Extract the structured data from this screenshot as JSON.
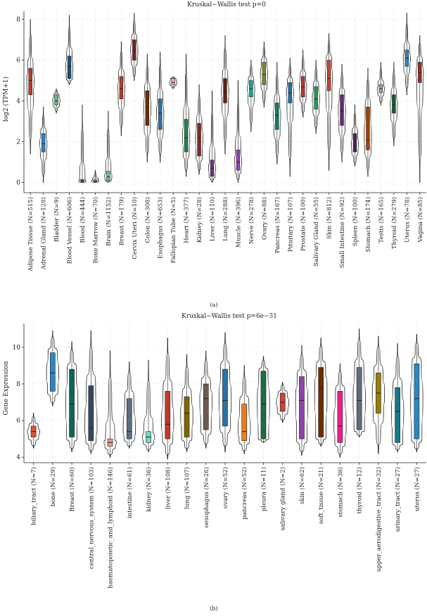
{
  "chart_data": [
    {
      "type": "violin+box",
      "title": "Kruskal−Wallis test p=0",
      "ylabel": "log2 (TPM+1)",
      "xlabel": "",
      "ylim": [
        -0.5,
        8.4
      ],
      "yticks": [
        0,
        2,
        4,
        6,
        8
      ],
      "panel_label": "(a)",
      "groups": [
        {
          "label": "Adipose Tissue (N=515)",
          "color": "#c0392b",
          "min": 1.4,
          "q1": 4.3,
          "median": 5.0,
          "q3": 5.6,
          "max": 8.0
        },
        {
          "label": "Adrenal Gland (N=128)",
          "color": "#2e86c1",
          "min": 0.0,
          "q1": 1.5,
          "median": 1.9,
          "q3": 2.4,
          "max": 3.7
        },
        {
          "label": "Bladder (N=9)",
          "color": "#52be80",
          "min": 3.4,
          "q1": 3.8,
          "median": 4.0,
          "q3": 4.3,
          "max": 4.6
        },
        {
          "label": "Blood Vessel (N=606)",
          "color": "#1a5276",
          "min": 4.8,
          "q1": 5.1,
          "median": 5.7,
          "q3": 6.2,
          "max": 8.2
        },
        {
          "label": "Blood (N=444)",
          "color": "#5d6d7e",
          "min": 0.0,
          "q1": 0.02,
          "median": 0.08,
          "q3": 0.15,
          "max": 3.8
        },
        {
          "label": "Bone Marrow (N=70)",
          "color": "#99a3a4",
          "min": 0.0,
          "q1": 0.03,
          "median": 0.08,
          "q3": 0.15,
          "max": 0.6
        },
        {
          "label": "Brain (N=1152)",
          "color": "#48c9b0",
          "min": 0.0,
          "q1": 0.1,
          "median": 0.28,
          "q3": 0.55,
          "max": 3.5
        },
        {
          "label": "Breast (N=179)",
          "color": "#c0392b",
          "min": 2.3,
          "q1": 4.1,
          "median": 4.6,
          "q3": 5.2,
          "max": 6.9
        },
        {
          "label": "Cervix Uteri (N=10)",
          "color": "#7b241c",
          "min": 5.0,
          "q1": 6.0,
          "median": 6.5,
          "q3": 7.0,
          "max": 8.3
        },
        {
          "label": "Colon (N=308)",
          "color": "#6e2c00",
          "min": 1.0,
          "q1": 2.8,
          "median": 3.7,
          "q3": 4.5,
          "max": 6.3
        },
        {
          "label": "Esophagus (N=653)",
          "color": "#2874a6",
          "min": 1.0,
          "q1": 2.6,
          "median": 3.4,
          "q3": 4.1,
          "max": 6.4
        },
        {
          "label": "Fallopian Tube (N=5)",
          "color": "#f5a6a6",
          "min": 4.6,
          "q1": 4.8,
          "median": 4.9,
          "q3": 5.1,
          "max": 5.2
        },
        {
          "label": "Heart (N=377)",
          "color": "#1e8449",
          "min": 0.3,
          "q1": 1.5,
          "median": 2.2,
          "q3": 3.1,
          "max": 6.3
        },
        {
          "label": "Kidney (N=28)",
          "color": "#7b2d26",
          "min": 0.4,
          "q1": 1.3,
          "median": 2.2,
          "q3": 2.9,
          "max": 4.8
        },
        {
          "label": "Liver (N=110)",
          "color": "#6c3483",
          "min": 0.0,
          "q1": 0.3,
          "median": 0.7,
          "q3": 1.1,
          "max": 4.5
        },
        {
          "label": "Lung (N=288)",
          "color": "#641e16",
          "min": 1.4,
          "q1": 3.9,
          "median": 4.5,
          "q3": 5.1,
          "max": 7.2
        },
        {
          "label": "Muscle (N=396)",
          "color": "#8e44ad",
          "min": 0.0,
          "q1": 0.6,
          "median": 1.0,
          "q3": 1.6,
          "max": 5.0
        },
        {
          "label": "Nerve (N=278)",
          "color": "#17a589",
          "min": 2.5,
          "q1": 4.2,
          "median": 4.6,
          "q3": 5.0,
          "max": 6.0
        },
        {
          "label": "Ovary (N=88)",
          "color": "#7d8a2e",
          "min": 3.7,
          "q1": 4.8,
          "median": 5.3,
          "q3": 5.9,
          "max": 6.9
        },
        {
          "label": "Pancreas (N=167)",
          "color": "#117a65",
          "min": 0.9,
          "q1": 2.6,
          "median": 3.3,
          "q3": 3.9,
          "max": 5.9
        },
        {
          "label": "Pituitary (N=107)",
          "color": "#2471a3",
          "min": 0.3,
          "q1": 3.9,
          "median": 4.4,
          "q3": 4.9,
          "max": 6.1
        },
        {
          "label": "Prostate (N=100)",
          "color": "#b03a2e",
          "min": 3.2,
          "q1": 4.2,
          "median": 4.7,
          "q3": 5.2,
          "max": 6.5
        },
        {
          "label": "Salivary Gland (N=55)",
          "color": "#229954",
          "min": 2.4,
          "q1": 3.6,
          "median": 4.1,
          "q3": 4.7,
          "max": 6.0
        },
        {
          "label": "Skin (N=812)",
          "color": "#cb4335",
          "min": 0.6,
          "q1": 4.5,
          "median": 5.1,
          "q3": 6.0,
          "max": 7.3
        },
        {
          "label": "Small Intestine (N=92)",
          "color": "#5b2c6f",
          "min": 1.0,
          "q1": 2.8,
          "median": 3.5,
          "q3": 4.3,
          "max": 5.8
        },
        {
          "label": "Spleen (N=100)",
          "color": "#4a235a",
          "min": 0.8,
          "q1": 1.5,
          "median": 1.8,
          "q3": 2.4,
          "max": 3.8
        },
        {
          "label": "Stomach (N=174)",
          "color": "#a04000",
          "min": 0.3,
          "q1": 1.6,
          "median": 2.1,
          "q3": 3.7,
          "max": 5.6
        },
        {
          "label": "Testis (N=165)",
          "color": "#95a5a6",
          "min": 3.8,
          "q1": 4.4,
          "median": 4.6,
          "q3": 4.8,
          "max": 5.9
        },
        {
          "label": "Thyroid (N=279)",
          "color": "#145a32",
          "min": 1.8,
          "q1": 3.4,
          "median": 3.8,
          "q3": 4.3,
          "max": 5.9
        },
        {
          "label": "Uterus (N=78)",
          "color": "#2e86c1",
          "min": 4.3,
          "q1": 5.7,
          "median": 6.1,
          "q3": 6.5,
          "max": 8.3
        },
        {
          "label": "Vagina (N=85)",
          "color": "#943126",
          "min": 0.0,
          "q1": 4.9,
          "median": 5.4,
          "q3": 5.9,
          "max": 7.2
        }
      ]
    },
    {
      "type": "violin+box",
      "title": "Kruskal−Wallis test p=6e−31",
      "ylabel": "Gene Expression",
      "xlabel": "",
      "ylim": [
        3.7,
        11.3
      ],
      "yticks": [
        4,
        6,
        8,
        10
      ],
      "panel_label": "(b)",
      "groups": [
        {
          "label": "biliary_tract (N=7)",
          "color": "#e74c3c",
          "min": 4.5,
          "q1": 5.1,
          "median": 5.4,
          "q3": 5.7,
          "max": 6.4
        },
        {
          "label": "bone (N=29)",
          "color": "#2e86c1",
          "min": 6.8,
          "q1": 7.6,
          "median": 8.6,
          "q3": 9.7,
          "max": 10.9
        },
        {
          "label": "Breast (N=60)",
          "color": "#0e6655",
          "min": 4.3,
          "q1": 5.1,
          "median": 6.9,
          "q3": 8.8,
          "max": 10.3
        },
        {
          "label": "central_nervous_system (N=103)",
          "color": "#34495e",
          "min": 4.2,
          "q1": 4.9,
          "median": 5.6,
          "q3": 7.9,
          "max": 10.9
        },
        {
          "label": "haematopoietic_and_lymphoid (N=146)",
          "color": "#f1948a",
          "min": 4.0,
          "q1": 4.6,
          "median": 4.8,
          "q3": 5.0,
          "max": 9.8
        },
        {
          "label": "intestine (N=61)",
          "color": "#5d6d7e",
          "min": 4.5,
          "q1": 5.0,
          "median": 5.4,
          "q3": 7.2,
          "max": 9.2
        },
        {
          "label": "kidney (N=36)",
          "color": "#76d7c4",
          "min": 4.3,
          "q1": 4.8,
          "median": 5.1,
          "q3": 5.4,
          "max": 9.3
        },
        {
          "label": "liver (N=108)",
          "color": "#c0392b",
          "min": 3.9,
          "q1": 5.0,
          "median": 5.8,
          "q3": 7.6,
          "max": 10.5
        },
        {
          "label": "lung (N=107)",
          "color": "#7d6608",
          "min": 4.3,
          "q1": 5.1,
          "median": 6.4,
          "q3": 7.3,
          "max": 9.6
        },
        {
          "label": "oesophagus (N=26)",
          "color": "#6e5b50",
          "min": 4.5,
          "q1": 5.5,
          "median": 7.2,
          "q3": 8.0,
          "max": 9.8
        },
        {
          "label": "ovary (N=52)",
          "color": "#2874a6",
          "min": 4.3,
          "q1": 5.7,
          "median": 7.1,
          "q3": 8.8,
          "max": 10.8
        },
        {
          "label": "pancreas (N=52)",
          "color": "#e67e22",
          "min": 4.2,
          "q1": 4.9,
          "median": 5.4,
          "q3": 6.9,
          "max": 9.0
        },
        {
          "label": "pleura (N=11)",
          "color": "#196f3d",
          "min": 4.8,
          "q1": 5.0,
          "median": 6.9,
          "q3": 8.7,
          "max": 9.5
        },
        {
          "label": "salivary gland (N=2)",
          "color": "#cb4335",
          "min": 5.9,
          "q1": 6.5,
          "median": 7.0,
          "q3": 7.5,
          "max": 8.1
        },
        {
          "label": "skin (N=62)",
          "color": "#8e44ad",
          "min": 4.1,
          "q1": 5.0,
          "median": 7.1,
          "q3": 8.4,
          "max": 10.1
        },
        {
          "label": "soft_tissue (N=21)",
          "color": "#6e2c00",
          "min": 4.6,
          "q1": 5.1,
          "median": 7.8,
          "q3": 8.9,
          "max": 10.5
        },
        {
          "label": "stomach (N=38)",
          "color": "#e91e8c",
          "min": 4.0,
          "q1": 4.8,
          "median": 5.7,
          "q3": 7.6,
          "max": 9.1
        },
        {
          "label": "thyroid (N=12)",
          "color": "#5d6d7e",
          "min": 5.1,
          "q1": 5.5,
          "median": 7.1,
          "q3": 8.9,
          "max": 11.0
        },
        {
          "label": "upper_aerodigestive_tract (N=32)",
          "color": "#9a7d0a",
          "min": 4.2,
          "q1": 6.4,
          "median": 7.5,
          "q3": 8.6,
          "max": 10.6
        },
        {
          "label": "urinary_tract (N=27)",
          "color": "#117a8b",
          "min": 4.3,
          "q1": 4.8,
          "median": 6.5,
          "q3": 7.8,
          "max": 10.2
        },
        {
          "label": "uterus (N=27)",
          "color": "#2e86c1",
          "min": 4.3,
          "q1": 5.0,
          "median": 7.2,
          "q3": 9.1,
          "max": 10.7
        }
      ]
    }
  ]
}
